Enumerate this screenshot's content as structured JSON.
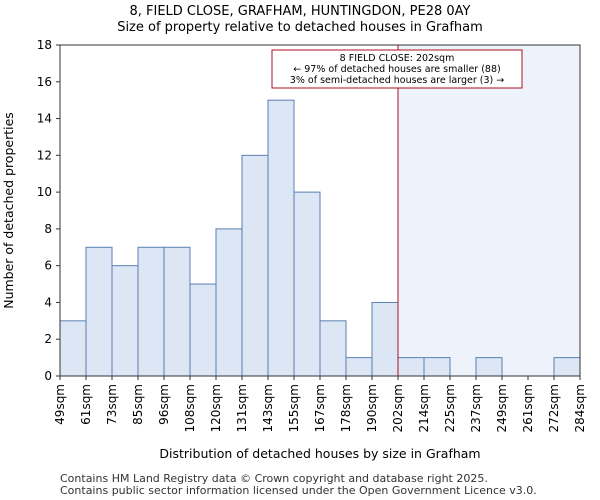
{
  "chart_data": {
    "type": "bar",
    "title": "8, FIELD CLOSE, GRAFHAM, HUNTINGDON, PE28 0AY",
    "subtitle": "Size of property relative to detached houses in Grafham",
    "xlabel": "Distribution of detached houses by size in Grafham",
    "ylabel": "Number of detached properties",
    "ylim": [
      0,
      18
    ],
    "yticks": [
      0,
      2,
      4,
      6,
      8,
      10,
      12,
      14,
      16,
      18
    ],
    "bin_edges": [
      "49sqm",
      "61sqm",
      "73sqm",
      "85sqm",
      "96sqm",
      "108sqm",
      "120sqm",
      "131sqm",
      "143sqm",
      "155sqm",
      "167sqm",
      "178sqm",
      "190sqm",
      "202sqm",
      "214sqm",
      "225sqm",
      "237sqm",
      "249sqm",
      "261sqm",
      "272sqm",
      "284sqm"
    ],
    "values": [
      3,
      7,
      6,
      7,
      7,
      5,
      8,
      12,
      15,
      10,
      3,
      1,
      4,
      1,
      1,
      0,
      1,
      0,
      0,
      1
    ],
    "marker": {
      "bin_index": 13,
      "lines": [
        "8 FIELD CLOSE: 202sqm",
        "← 97% of detached houses are smaller (88)",
        "3% of semi-detached houses are larger (3) →"
      ]
    },
    "colors": {
      "bar_fill": "#dce6f4",
      "bar_stroke": "#5a7fb5",
      "marker_line": "#aa1122",
      "highlight_bg": "#eef2fb"
    }
  },
  "footer": {
    "line1": "Contains HM Land Registry data © Crown copyright and database right 2025.",
    "line2": "Contains public sector information licensed under the Open Government Licence v3.0."
  }
}
